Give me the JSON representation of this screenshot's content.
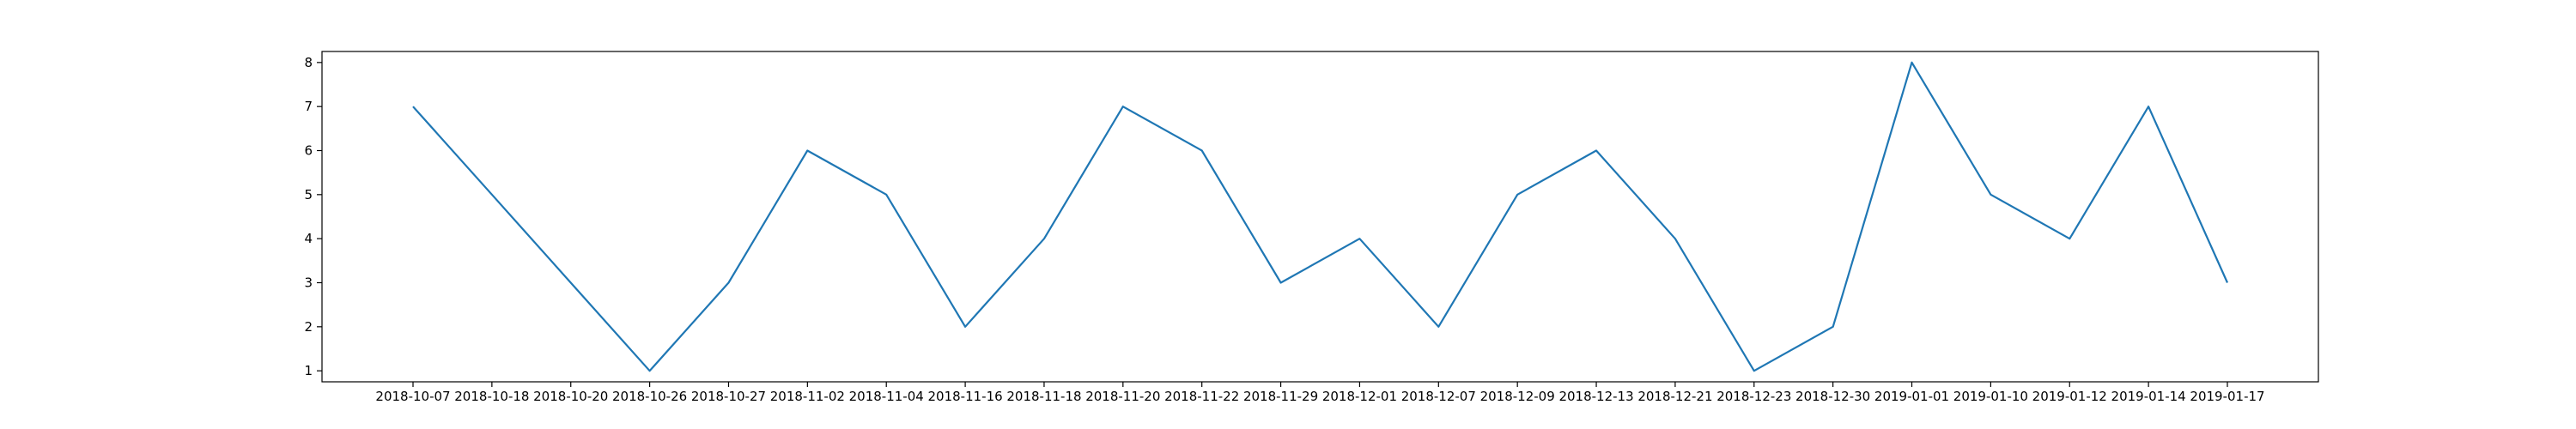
{
  "chart_data": {
    "type": "line",
    "title": "",
    "xlabel": "",
    "ylabel": "",
    "categories": [
      "2018-10-07",
      "2018-10-18",
      "2018-10-20",
      "2018-10-26",
      "2018-10-27",
      "2018-11-02",
      "2018-11-04",
      "2018-11-16",
      "2018-11-18",
      "2018-11-20",
      "2018-11-22",
      "2018-11-29",
      "2018-12-01",
      "2018-12-07",
      "2018-12-09",
      "2018-12-13",
      "2018-12-21",
      "2018-12-23",
      "2018-12-30",
      "2019-01-01",
      "2019-01-10",
      "2019-01-12",
      "2019-01-14",
      "2019-01-17"
    ],
    "series": [
      {
        "values": [
          7,
          5,
          3,
          1,
          3,
          6,
          5,
          2,
          4,
          7,
          6,
          3,
          4,
          2,
          5,
          6,
          4,
          1,
          2,
          8,
          5,
          4,
          7,
          3
        ],
        "color": "#1f77b4"
      }
    ],
    "ylim": [
      0.75,
      8.25
    ],
    "yticks": [
      1,
      2,
      3,
      4,
      5,
      6,
      7,
      8
    ],
    "grid": false,
    "legend": "none"
  }
}
